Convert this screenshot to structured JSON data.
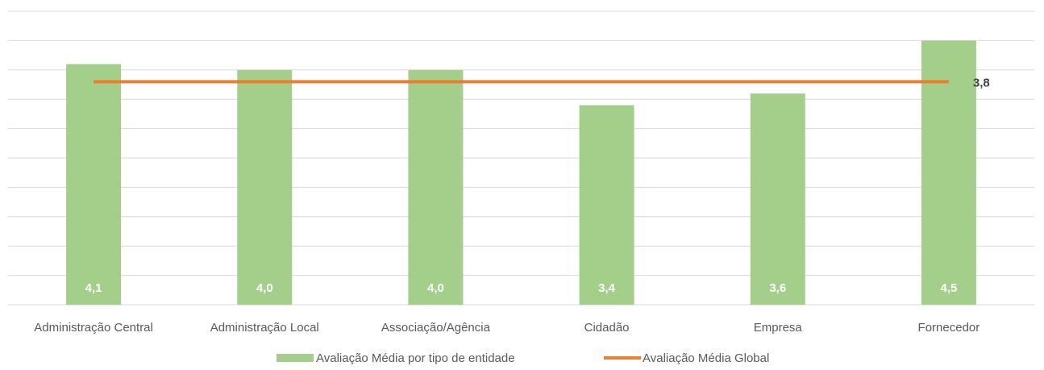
{
  "chart_data": {
    "type": "bar",
    "categories": [
      "Administração Central",
      "Administração Local",
      "Associação/Agência",
      "Cidadão",
      "Empresa",
      "Fornecedor"
    ],
    "series": [
      {
        "name": "Avaliação Média por tipo de entidade",
        "kind": "bar",
        "values": [
          4.1,
          4.0,
          4.0,
          3.4,
          3.6,
          4.5
        ],
        "labels": [
          "4,1",
          "4,0",
          "4,0",
          "3,4",
          "3,6",
          "4,5"
        ],
        "color": "#a3cf8a"
      },
      {
        "name": "Avaliação Média Global",
        "kind": "line",
        "value": 3.8,
        "label": "3,8",
        "color": "#ed7d31"
      }
    ],
    "ylim": [
      0,
      5.0
    ],
    "grid": true,
    "gridlines": 11,
    "legend": "bottom",
    "colors": {
      "grid": "#d9d9d9",
      "text": "#595959"
    }
  }
}
